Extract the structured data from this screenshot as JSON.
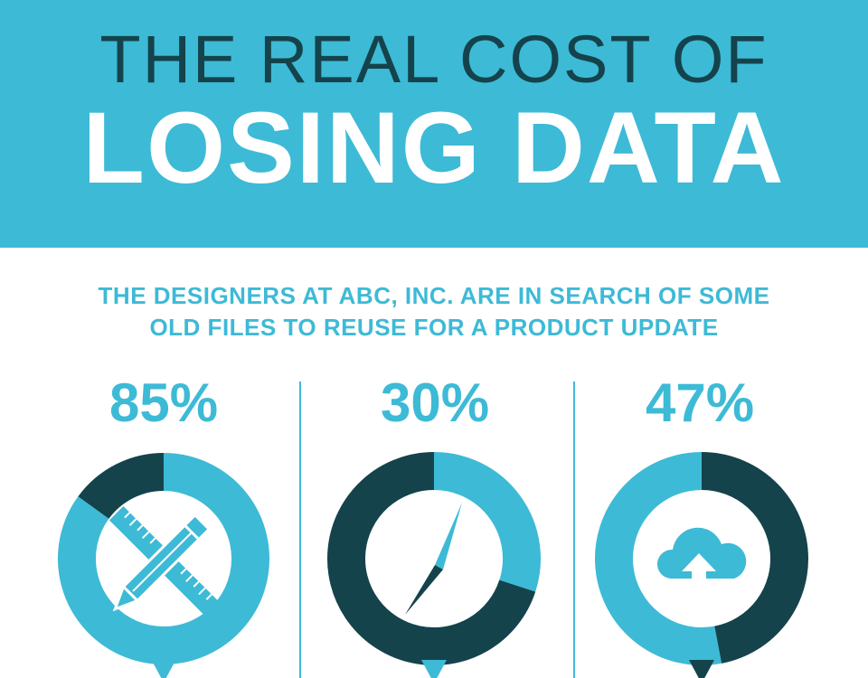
{
  "header": {
    "title_line1": "THE REAL COST OF",
    "title_line2": "LOSING DATA"
  },
  "subtitle": {
    "line1": "THE DESIGNERS AT ABC, INC. ARE IN SEARCH OF SOME",
    "line2": "OLD FILES TO REUSE FOR A PRODUCT UPDATE"
  },
  "stats": [
    {
      "label": "85%",
      "value": 85,
      "icon": "pencil-ruler-icon"
    },
    {
      "label": "30%",
      "value": 30,
      "icon": "compass-needle-icon"
    },
    {
      "label": "47%",
      "value": 47,
      "icon": "cloud-upload-icon"
    }
  ],
  "colors": {
    "accent": "#3dbad6",
    "dark": "#14434c",
    "white": "#ffffff"
  }
}
